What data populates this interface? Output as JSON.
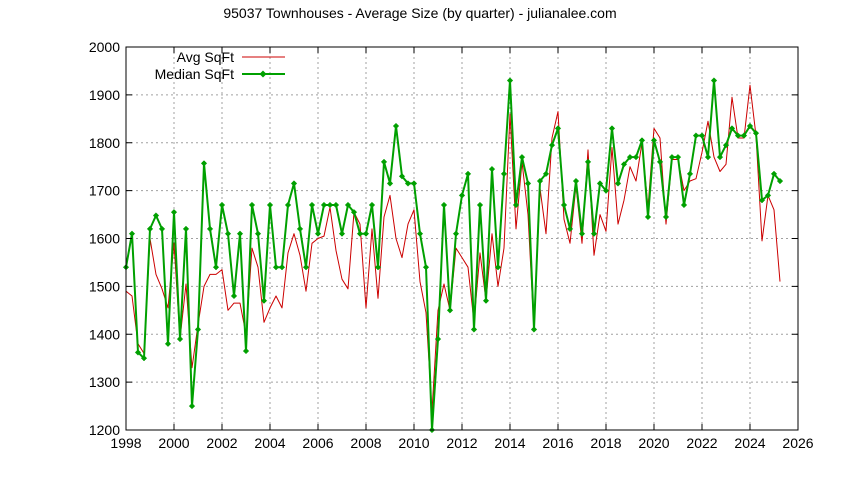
{
  "chart_data": {
    "type": "line",
    "title": "95037 Townhouses - Average Size (by quarter) - julianalee.com",
    "xlabel": "",
    "ylabel": "",
    "xlim": [
      1998,
      2026
    ],
    "ylim": [
      1200,
      2000
    ],
    "xticks": [
      "1998",
      "2000",
      "2002",
      "2004",
      "2006",
      "2008",
      "2010",
      "2012",
      "2014",
      "2016",
      "2018",
      "2020",
      "2022",
      "2024",
      "2026"
    ],
    "yticks": [
      "1200",
      "1300",
      "1400",
      "1500",
      "1600",
      "1700",
      "1800",
      "1900",
      "2000"
    ],
    "grid": true,
    "legend_position": "top-left",
    "series": [
      {
        "name": "Avg SqFt",
        "color": "#cc0000",
        "marker": "none",
        "x": [
          1998.0,
          1998.25,
          1998.5,
          1998.75,
          1999.0,
          1999.25,
          1999.5,
          1999.75,
          2000.0,
          2000.25,
          2000.5,
          2000.75,
          2001.0,
          2001.25,
          2001.5,
          2001.75,
          2002.0,
          2002.25,
          2002.5,
          2002.75,
          2003.0,
          2003.25,
          2003.5,
          2003.75,
          2004.0,
          2004.25,
          2004.5,
          2004.75,
          2005.0,
          2005.25,
          2005.5,
          2005.75,
          2006.0,
          2006.25,
          2006.5,
          2006.75,
          2007.0,
          2007.25,
          2007.5,
          2007.75,
          2008.0,
          2008.25,
          2008.5,
          2008.75,
          2009.0,
          2009.25,
          2009.5,
          2009.75,
          2010.0,
          2010.25,
          2010.5,
          2010.75,
          2011.0,
          2011.25,
          2011.5,
          2011.75,
          2012.0,
          2012.25,
          2012.5,
          2012.75,
          2013.0,
          2013.25,
          2013.5,
          2013.75,
          2014.0,
          2014.25,
          2014.5,
          2014.75,
          2015.0,
          2015.25,
          2015.5,
          2015.75,
          2016.0,
          2016.25,
          2016.5,
          2016.75,
          2017.0,
          2017.25,
          2017.5,
          2017.75,
          2018.0,
          2018.25,
          2018.5,
          2018.75,
          2019.0,
          2019.25,
          2019.5,
          2019.75,
          2020.0,
          2020.25,
          2020.5,
          2020.75,
          2021.0,
          2021.25,
          2021.5,
          2021.75,
          2022.0,
          2022.25,
          2022.5,
          2022.75,
          2023.0,
          2023.25,
          2023.5,
          2023.75,
          2024.0,
          2024.25,
          2024.5,
          2024.75,
          2025.0,
          2025.25
        ],
        "y": [
          1490,
          1480,
          1380,
          1360,
          1600,
          1525,
          1495,
          1455,
          1590,
          1390,
          1505,
          1330,
          1420,
          1500,
          1525,
          1525,
          1535,
          1450,
          1465,
          1465,
          1400,
          1580,
          1540,
          1425,
          1455,
          1480,
          1455,
          1570,
          1610,
          1565,
          1490,
          1590,
          1600,
          1605,
          1665,
          1575,
          1515,
          1495,
          1655,
          1630,
          1455,
          1620,
          1475,
          1645,
          1690,
          1600,
          1560,
          1630,
          1660,
          1510,
          1445,
          1240,
          1450,
          1505,
          1450,
          1580,
          1560,
          1540,
          1425,
          1570,
          1470,
          1610,
          1500,
          1580,
          1860,
          1620,
          1760,
          1650,
          1410,
          1705,
          1610,
          1810,
          1865,
          1640,
          1590,
          1710,
          1590,
          1785,
          1565,
          1650,
          1615,
          1790,
          1630,
          1680,
          1750,
          1720,
          1800,
          1665,
          1830,
          1810,
          1630,
          1765,
          1765,
          1700,
          1720,
          1725,
          1780,
          1845,
          1770,
          1740,
          1755,
          1895,
          1810,
          1810,
          1920,
          1815,
          1595,
          1690,
          1660,
          1510
        ]
      },
      {
        "name": "Median SqFt",
        "color": "#00a000",
        "marker": "diamond",
        "x": [
          1998.0,
          1998.25,
          1998.5,
          1998.75,
          1999.0,
          1999.25,
          1999.5,
          1999.75,
          2000.0,
          2000.25,
          2000.5,
          2000.75,
          2001.0,
          2001.25,
          2001.5,
          2001.75,
          2002.0,
          2002.25,
          2002.5,
          2002.75,
          2003.0,
          2003.25,
          2003.5,
          2003.75,
          2004.0,
          2004.25,
          2004.5,
          2004.75,
          2005.0,
          2005.25,
          2005.5,
          2005.75,
          2006.0,
          2006.25,
          2006.5,
          2006.75,
          2007.0,
          2007.25,
          2007.5,
          2007.75,
          2008.0,
          2008.25,
          2008.5,
          2008.75,
          2009.0,
          2009.25,
          2009.5,
          2009.75,
          2010.0,
          2010.25,
          2010.5,
          2010.75,
          2011.0,
          2011.25,
          2011.5,
          2011.75,
          2012.0,
          2012.25,
          2012.5,
          2012.75,
          2013.0,
          2013.25,
          2013.5,
          2013.75,
          2014.0,
          2014.25,
          2014.5,
          2014.75,
          2015.0,
          2015.25,
          2015.5,
          2015.75,
          2016.0,
          2016.25,
          2016.5,
          2016.75,
          2017.0,
          2017.25,
          2017.5,
          2017.75,
          2018.0,
          2018.25,
          2018.5,
          2018.75,
          2019.0,
          2019.25,
          2019.5,
          2019.75,
          2020.0,
          2020.25,
          2020.5,
          2020.75,
          2021.0,
          2021.25,
          2021.5,
          2021.75,
          2022.0,
          2022.25,
          2022.5,
          2022.75,
          2023.0,
          2023.25,
          2023.5,
          2023.75,
          2024.0,
          2024.25,
          2024.5,
          2024.75,
          2025.0,
          2025.25
        ],
        "y": [
          1540,
          1610,
          1362,
          1350,
          1620,
          1648,
          1620,
          1380,
          1655,
          1390,
          1620,
          1250,
          1410,
          1757,
          1620,
          1540,
          1670,
          1610,
          1480,
          1610,
          1365,
          1670,
          1610,
          1470,
          1670,
          1540,
          1540,
          1670,
          1715,
          1620,
          1540,
          1670,
          1610,
          1670,
          1670,
          1670,
          1610,
          1670,
          1655,
          1610,
          1610,
          1670,
          1540,
          1760,
          1715,
          1835,
          1730,
          1715,
          1715,
          1610,
          1540,
          1200,
          1390,
          1670,
          1450,
          1610,
          1690,
          1735,
          1410,
          1670,
          1470,
          1745,
          1540,
          1735,
          1930,
          1670,
          1770,
          1715,
          1410,
          1720,
          1735,
          1795,
          1830,
          1670,
          1620,
          1720,
          1610,
          1760,
          1610,
          1715,
          1700,
          1830,
          1715,
          1755,
          1770,
          1770,
          1805,
          1645,
          1805,
          1760,
          1645,
          1770,
          1770,
          1670,
          1735,
          1815,
          1815,
          1770,
          1930,
          1770,
          1795,
          1830,
          1815,
          1815,
          1835,
          1820,
          1680,
          1690,
          1735,
          1720
        ]
      }
    ]
  }
}
